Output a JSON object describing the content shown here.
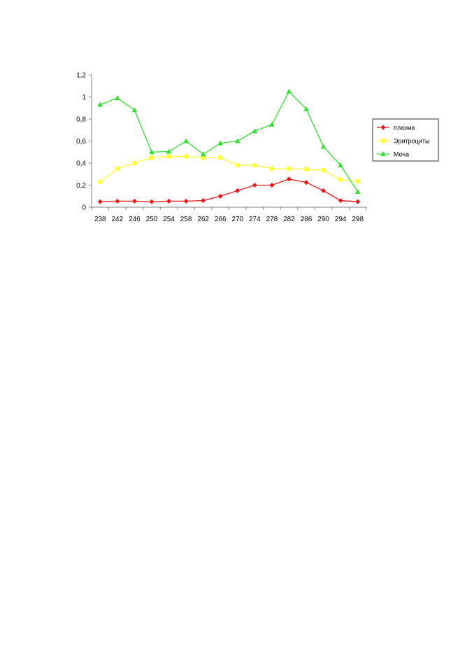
{
  "chart_data": {
    "type": "line",
    "title": "",
    "xlabel": "",
    "ylabel": "",
    "categories": [
      "238",
      "242",
      "246",
      "250",
      "254",
      "258",
      "262",
      "266",
      "270",
      "274",
      "278",
      "282",
      "286",
      "290",
      "294",
      "298"
    ],
    "y_ticks": [
      "0",
      "0,2",
      "0,4",
      "0,6",
      "0,8",
      "1",
      "1,2"
    ],
    "ylim": [
      0,
      1.2
    ],
    "grid": false,
    "legend_position": "right",
    "series": [
      {
        "name": "плазма",
        "color": "#e31a1c",
        "marker": "diamond",
        "values": [
          0.05,
          0.055,
          0.055,
          0.05,
          0.055,
          0.055,
          0.06,
          0.1,
          0.15,
          0.2,
          0.2,
          0.255,
          0.225,
          0.15,
          0.06,
          0.05
        ]
      },
      {
        "name": "Эритроциты",
        "color": "#ffff33",
        "marker": "square",
        "values": [
          0.23,
          0.35,
          0.4,
          0.45,
          0.46,
          0.46,
          0.45,
          0.45,
          0.38,
          0.38,
          0.35,
          0.35,
          0.345,
          0.335,
          0.25,
          0.235
        ]
      },
      {
        "name": "Моча",
        "color": "#33dd33",
        "marker": "triangle",
        "values": [
          0.93,
          0.99,
          0.88,
          0.5,
          0.505,
          0.6,
          0.48,
          0.58,
          0.6,
          0.69,
          0.75,
          1.05,
          0.89,
          0.55,
          0.38,
          0.14
        ]
      }
    ]
  }
}
